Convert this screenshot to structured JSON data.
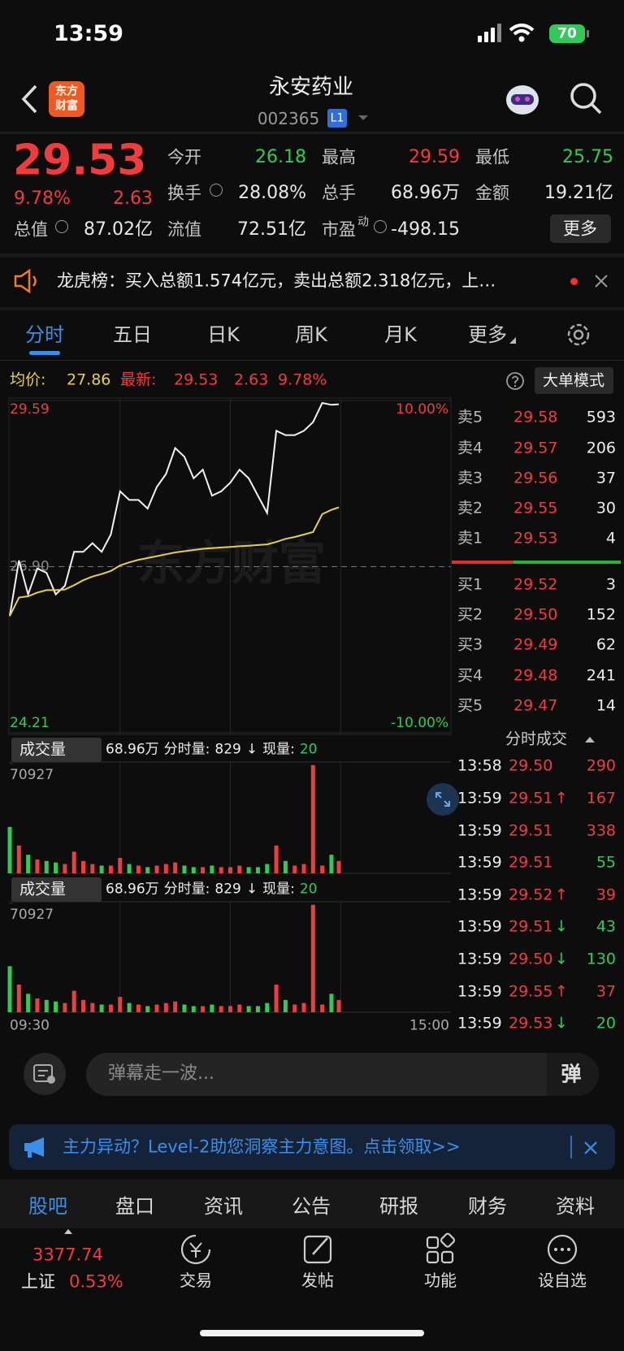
{
  "status_bar": {
    "time": "13:59",
    "battery": "70"
  },
  "header": {
    "logo_top": "东方",
    "logo_bottom": "财富",
    "title": "永安药业",
    "code": "002365",
    "level": "L1"
  },
  "quote": {
    "price": "29.53",
    "change_pct": "9.78%",
    "change": "2.63",
    "fields": [
      {
        "label": "今开",
        "value": "26.18",
        "color": "#2ecc55"
      },
      {
        "label": "最高",
        "value": "29.59",
        "color": "#f03c3c"
      },
      {
        "label": "最低",
        "value": "25.75",
        "color": "#2ecc55"
      },
      {
        "label": "换手",
        "value": "28.08%"
      },
      {
        "label": "总手",
        "value": "68.96万"
      },
      {
        "label": "金额",
        "value": "19.21亿"
      },
      {
        "label": "总值",
        "value": "87.02亿"
      },
      {
        "label": "流值",
        "value": "72.51亿"
      },
      {
        "label": "市盈",
        "label_sup": "动",
        "value": "-498.15"
      }
    ],
    "more": "更多"
  },
  "notice": {
    "text": "龙虎榜：买入总额1.574亿元，卖出总额2.318亿元，上…"
  },
  "tabs": {
    "items": [
      "分时",
      "五日",
      "日K",
      "周K",
      "月K",
      "更多"
    ],
    "active": 0
  },
  "info_bar": {
    "mode": "大单模式"
  },
  "chart_data": [
    {
      "type": "line",
      "watermark": "东方财富",
      "x": [
        "09:30",
        "09:35",
        "09:40",
        "09:45",
        "09:50",
        "09:55",
        "10:00",
        "10:05",
        "10:10",
        "10:15",
        "10:20",
        "10:25",
        "10:30",
        "10:35",
        "10:40",
        "10:45",
        "10:50",
        "10:55",
        "11:00",
        "11:05",
        "11:10",
        "11:15",
        "11:20",
        "11:25",
        "11:30",
        "13:05",
        "13:10",
        "13:15",
        "13:20",
        "13:25",
        "13:30",
        "13:35",
        "13:40",
        "13:45",
        "13:50",
        "13:55",
        "13:59"
      ],
      "xlim": [
        "09:30",
        "15:00"
      ],
      "ylim": [
        24.21,
        29.59
      ],
      "yticks": [
        24.21,
        {
          "value": 26.9,
          "label": "26.90"
        },
        29.59
      ],
      "y2lim": [
        -10,
        10
      ],
      "y2ticks": [
        {
          "value": -10,
          "label": "-10.00%"
        },
        {
          "value": 10,
          "label": "10.00%"
        }
      ],
      "series": [
        {
          "name": "最新:",
          "color": "#f2f2f2",
          "values": [
            26.1,
            27.0,
            26.45,
            26.87,
            26.8,
            26.45,
            26.59,
            27.14,
            27.14,
            27.28,
            27.14,
            27.42,
            28.12,
            27.98,
            27.98,
            27.84,
            28.19,
            28.4,
            28.82,
            28.68,
            28.33,
            28.47,
            28.05,
            28.12,
            28.26,
            28.47,
            28.33,
            28.05,
            27.77,
            29.1,
            29.03,
            29.03,
            29.1,
            29.24,
            29.55,
            29.52,
            29.53
          ]
        },
        {
          "name": "均价:",
          "color": "#e6d04a",
          "values": [
            26.1,
            26.4,
            26.42,
            26.48,
            26.52,
            26.52,
            26.53,
            26.6,
            26.68,
            26.74,
            26.78,
            26.83,
            26.92,
            26.97,
            27.01,
            27.04,
            27.07,
            27.1,
            27.13,
            27.15,
            27.17,
            27.19,
            27.2,
            27.21,
            27.22,
            27.23,
            27.24,
            27.25,
            27.26,
            27.3,
            27.35,
            27.38,
            27.42,
            27.46,
            27.75,
            27.82,
            27.86
          ]
        }
      ]
    },
    {
      "type": "bar",
      "title": "成交量",
      "total": "68.96万",
      "minute_label": "分时量:",
      "minute_volume": 829,
      "minute_arrow": "↓",
      "current_label": "现量:",
      "current_volume": 20,
      "ylim": [
        0,
        70927
      ],
      "yticks": [
        70927
      ],
      "colors": {
        "up": "#f03c3c",
        "down": "#2ecc55"
      },
      "values": [
        30000,
        18000,
        12000,
        9000,
        8000,
        7000,
        6000,
        14000,
        8000,
        6000,
        5000,
        5000,
        10000,
        6000,
        5000,
        4000,
        5000,
        6000,
        7000,
        5000,
        4000,
        4000,
        5000,
        4000,
        4000,
        5000,
        4000,
        4000,
        6000,
        18000,
        8000,
        5000,
        6000,
        70000,
        5000,
        12000,
        8000
      ]
    }
  ],
  "order_book": {
    "asks": [
      {
        "label": "卖5",
        "price": "29.58",
        "volume": "593"
      },
      {
        "label": "卖4",
        "price": "29.57",
        "volume": "206"
      },
      {
        "label": "卖3",
        "price": "29.56",
        "volume": "37"
      },
      {
        "label": "卖2",
        "price": "29.55",
        "volume": "30"
      },
      {
        "label": "卖1",
        "price": "29.53",
        "volume": "4"
      }
    ],
    "bids": [
      {
        "label": "买1",
        "price": "29.52",
        "volume": "3"
      },
      {
        "label": "买2",
        "price": "29.50",
        "volume": "152"
      },
      {
        "label": "买3",
        "price": "29.49",
        "volume": "62"
      },
      {
        "label": "买4",
        "price": "29.48",
        "volume": "241"
      },
      {
        "label": "买5",
        "price": "29.47",
        "volume": "14"
      }
    ]
  },
  "trades": {
    "title": "分时成交",
    "rows": [
      {
        "time": "13:58",
        "price": "29.50",
        "volume": "290",
        "color": "#f03c3c"
      },
      {
        "time": "13:59",
        "price": "29.51",
        "arrow": "↑",
        "volume": "167",
        "color": "#f03c3c"
      },
      {
        "time": "13:59",
        "price": "29.51",
        "volume": "338",
        "color": "#f03c3c"
      },
      {
        "time": "13:59",
        "price": "29.51",
        "volume": "55",
        "color": "#2ecc55"
      },
      {
        "time": "13:59",
        "price": "29.52",
        "arrow": "↑",
        "volume": "39",
        "color": "#f03c3c"
      },
      {
        "time": "13:59",
        "price": "29.51",
        "arrow": "↓",
        "volume": "43",
        "color": "#2ecc55"
      },
      {
        "time": "13:59",
        "price": "29.50",
        "arrow": "↓",
        "volume": "130",
        "color": "#2ecc55"
      },
      {
        "time": "13:59",
        "price": "29.55",
        "arrow": "↑",
        "volume": "37",
        "color": "#f03c3c"
      },
      {
        "time": "13:59",
        "price": "29.53",
        "arrow": "↓",
        "volume": "20",
        "color": "#2ecc55"
      }
    ]
  },
  "danmaku": {
    "placeholder": "弹幕走一波...",
    "button": "弹"
  },
  "promo": {
    "text": "主力异动？Level-2助您洞察主力意图。点击领取>>"
  },
  "bottom_tabs": {
    "items": [
      "股吧",
      "盘口",
      "资讯",
      "公告",
      "研报",
      "财务",
      "资料"
    ],
    "active": 0
  },
  "nav": {
    "index_value": "3377.74",
    "index_name": "上证",
    "index_change": "0.53%",
    "items": [
      "交易",
      "发帖",
      "功能",
      "设自选"
    ]
  }
}
